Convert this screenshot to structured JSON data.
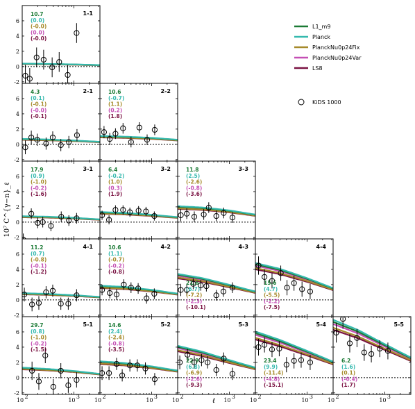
{
  "chart_data": {
    "type": "line",
    "xlabel": "ℓ",
    "ylabel": "10⁷ C^{γ−n}_ℓ",
    "xscale": "log",
    "xlim": [
      100,
      3200
    ],
    "ylim": [
      -2.2,
      8.0
    ],
    "yticks": [
      -2,
      0,
      2,
      4,
      6
    ],
    "xticks": [
      {
        "v": 100,
        "base": "10",
        "exp": "2"
      },
      {
        "v": 1000,
        "base": "10",
        "exp": "3"
      }
    ],
    "grid": false,
    "legend": {
      "placement": "top-right",
      "items": [
        {
          "name": "L1_m9",
          "color": "#1b7a35",
          "kind": "line"
        },
        {
          "name": "Planck",
          "color": "#35b9ae",
          "kind": "line"
        },
        {
          "name": "PlanckNu0p24Fix",
          "color": "#a68a2b",
          "kind": "line"
        },
        {
          "name": "PlanckNu0p24Var",
          "color": "#c44fb4",
          "kind": "line"
        },
        {
          "name": "LS8",
          "color": "#7a1242",
          "kind": "line"
        },
        {
          "name": "KiDS 1000",
          "color": "#000000",
          "kind": "marker"
        }
      ]
    },
    "stat_colors": [
      "#1b7a35",
      "#35b9ae",
      "#a68a2b",
      "#c44fb4",
      "#7a1242"
    ],
    "panels": [
      {
        "label": "1-1",
        "row": 0,
        "col": 0,
        "stats_pos": "top",
        "stats": [
          "10.7",
          "(0.0)",
          "(-0.0)",
          "(0.0)",
          "(-0.0)"
        ],
        "model": [
          [
            100,
            0.35
          ],
          [
            300,
            0.32
          ],
          [
            1000,
            0.26
          ],
          [
            3200,
            0.18
          ]
        ],
        "points": [
          {
            "x": 115,
            "y": -1.2,
            "e": 1.4
          },
          {
            "x": 140,
            "y": -1.6,
            "e": 1.4
          },
          {
            "x": 190,
            "y": 1.2,
            "e": 1.3
          },
          {
            "x": 260,
            "y": 0.9,
            "e": 1.3
          },
          {
            "x": 380,
            "y": -0.1,
            "e": 1.3
          },
          {
            "x": 520,
            "y": 0.6,
            "e": 1.3
          },
          {
            "x": 760,
            "y": -1.1,
            "e": 1.3
          },
          {
            "x": 1130,
            "y": 4.4,
            "e": 1.3
          }
        ]
      },
      {
        "label": "2-1",
        "row": 1,
        "col": 0,
        "stats_pos": "top",
        "stats": [
          "4.3",
          "(0.1)",
          "(-0.1)",
          "(-0.0)",
          "(-0.1)"
        ],
        "model": [
          [
            100,
            0.65
          ],
          [
            300,
            0.58
          ],
          [
            1000,
            0.46
          ],
          [
            3200,
            0.3
          ]
        ],
        "points": [
          {
            "x": 115,
            "y": -0.4,
            "e": 0.9
          },
          {
            "x": 150,
            "y": 0.9,
            "e": 0.9
          },
          {
            "x": 195,
            "y": 0.6,
            "e": 0.8
          },
          {
            "x": 290,
            "y": 0.1,
            "e": 0.8
          },
          {
            "x": 390,
            "y": 0.9,
            "e": 0.8
          },
          {
            "x": 560,
            "y": -0.1,
            "e": 0.8
          },
          {
            "x": 800,
            "y": 0.3,
            "e": 0.8
          },
          {
            "x": 1150,
            "y": 1.2,
            "e": 0.8
          }
        ]
      },
      {
        "label": "2-2",
        "row": 1,
        "col": 1,
        "stats_pos": "top",
        "stats": [
          "10.6",
          "(-0.7)",
          "(1.1)",
          "(0.2)",
          "(1.8)"
        ],
        "model": [
          [
            100,
            1.0
          ],
          [
            300,
            0.92
          ],
          [
            1000,
            0.78
          ],
          [
            3200,
            0.55
          ]
        ],
        "points": [
          {
            "x": 120,
            "y": 1.6,
            "e": 0.8
          },
          {
            "x": 155,
            "y": 0.7,
            "e": 0.8
          },
          {
            "x": 200,
            "y": 1.4,
            "e": 0.7
          },
          {
            "x": 280,
            "y": 2.1,
            "e": 0.7
          },
          {
            "x": 400,
            "y": 0.3,
            "e": 0.7
          },
          {
            "x": 580,
            "y": 2.2,
            "e": 0.7
          },
          {
            "x": 820,
            "y": 0.6,
            "e": 0.7
          },
          {
            "x": 1150,
            "y": 1.9,
            "e": 0.7
          }
        ]
      },
      {
        "label": "3-1",
        "row": 2,
        "col": 0,
        "stats_pos": "top",
        "stats": [
          "17.9",
          "(0.9)",
          "(-1.0)",
          "(-0.2)",
          "(-1.6)"
        ],
        "model": [
          [
            100,
            0.7
          ],
          [
            300,
            0.65
          ],
          [
            1000,
            0.52
          ],
          [
            3200,
            0.32
          ]
        ],
        "points": [
          {
            "x": 105,
            "y": -2.3,
            "e": 0.8
          },
          {
            "x": 150,
            "y": 1.1,
            "e": 0.7
          },
          {
            "x": 200,
            "y": -0.1,
            "e": 0.7
          },
          {
            "x": 250,
            "y": 0.0,
            "e": 0.7
          },
          {
            "x": 360,
            "y": -0.5,
            "e": 0.7
          },
          {
            "x": 570,
            "y": 0.7,
            "e": 0.7
          },
          {
            "x": 800,
            "y": 0.2,
            "e": 0.7
          },
          {
            "x": 1130,
            "y": 0.5,
            "e": 0.7
          }
        ]
      },
      {
        "label": "3-2",
        "row": 2,
        "col": 1,
        "stats_pos": "top",
        "stats": [
          "6.4",
          "(-0.2)",
          "(1.0)",
          "(0.3)",
          "(1.9)"
        ],
        "model": [
          [
            100,
            1.2
          ],
          [
            300,
            1.1
          ],
          [
            1000,
            0.88
          ],
          [
            3200,
            0.6
          ]
        ],
        "points": [
          {
            "x": 110,
            "y": 0.9,
            "e": 0.6
          },
          {
            "x": 150,
            "y": 0.3,
            "e": 0.6
          },
          {
            "x": 200,
            "y": 1.6,
            "e": 0.6
          },
          {
            "x": 280,
            "y": 1.6,
            "e": 0.6
          },
          {
            "x": 380,
            "y": 1.3,
            "e": 0.6
          },
          {
            "x": 560,
            "y": 1.5,
            "e": 0.6
          },
          {
            "x": 780,
            "y": 1.4,
            "e": 0.6
          },
          {
            "x": 1130,
            "y": 0.8,
            "e": 0.6
          }
        ]
      },
      {
        "label": "3-3",
        "row": 2,
        "col": 2,
        "stats_pos": "top",
        "stats": [
          "11.8",
          "(2.5)",
          "(-2.6)",
          "(-0.8)",
          "(-3.6)"
        ],
        "model": [
          [
            100,
            1.9
          ],
          [
            300,
            1.75
          ],
          [
            1000,
            1.4
          ],
          [
            3200,
            0.9
          ]
        ],
        "points": [
          {
            "x": 115,
            "y": 0.9,
            "e": 0.8
          },
          {
            "x": 150,
            "y": 1.1,
            "e": 0.7
          },
          {
            "x": 210,
            "y": 0.7,
            "e": 0.7
          },
          {
            "x": 320,
            "y": 1.0,
            "e": 0.7
          },
          {
            "x": 400,
            "y": 1.9,
            "e": 0.7
          },
          {
            "x": 560,
            "y": 0.8,
            "e": 0.7
          },
          {
            "x": 780,
            "y": 1.2,
            "e": 0.7
          },
          {
            "x": 1150,
            "y": 0.6,
            "e": 0.7
          }
        ]
      },
      {
        "label": "4-1",
        "row": 3,
        "col": 0,
        "stats_pos": "top",
        "stats": [
          "11.2",
          "(0.7)",
          "(-0.8)",
          "(-0.1)",
          "(-1.2)"
        ],
        "model": [
          [
            100,
            0.8
          ],
          [
            300,
            0.72
          ],
          [
            1000,
            0.56
          ],
          [
            3200,
            0.35
          ]
        ],
        "points": [
          {
            "x": 110,
            "y": 0.7,
            "e": 0.9
          },
          {
            "x": 155,
            "y": -0.6,
            "e": 0.9
          },
          {
            "x": 210,
            "y": -0.4,
            "e": 0.9
          },
          {
            "x": 290,
            "y": 1.0,
            "e": 0.8
          },
          {
            "x": 390,
            "y": 1.2,
            "e": 0.8
          },
          {
            "x": 560,
            "y": -0.5,
            "e": 0.8
          },
          {
            "x": 780,
            "y": -0.5,
            "e": 0.8
          },
          {
            "x": 1130,
            "y": 0.6,
            "e": 0.8
          }
        ]
      },
      {
        "label": "4-2",
        "row": 3,
        "col": 1,
        "stats_pos": "top",
        "stats": [
          "10.6",
          "(1.1)",
          "(-0.7)",
          "(-0.2)",
          "(-0.8)"
        ],
        "model": [
          [
            100,
            1.7
          ],
          [
            300,
            1.55
          ],
          [
            1000,
            1.2
          ],
          [
            3200,
            0.75
          ]
        ],
        "points": [
          {
            "x": 110,
            "y": 1.3,
            "e": 0.7
          },
          {
            "x": 155,
            "y": 0.9,
            "e": 0.7
          },
          {
            "x": 210,
            "y": 0.7,
            "e": 0.7
          },
          {
            "x": 290,
            "y": 2.0,
            "e": 0.7
          },
          {
            "x": 400,
            "y": 1.6,
            "e": 0.7
          },
          {
            "x": 550,
            "y": 1.5,
            "e": 0.7
          },
          {
            "x": 800,
            "y": 0.2,
            "e": 0.7
          },
          {
            "x": 1130,
            "y": 0.8,
            "e": 0.7
          }
        ]
      },
      {
        "label": "4-3",
        "row": 3,
        "col": 2,
        "stats_pos": "bottom",
        "stats": [
          "21.6",
          "(6.7)",
          "(-7.2)",
          "(-2.3)",
          "(-10.1)"
        ],
        "model": [
          [
            100,
            3.1
          ],
          [
            300,
            2.6
          ],
          [
            1000,
            1.8
          ],
          [
            3200,
            1.0
          ]
        ],
        "points": [
          {
            "x": 115,
            "y": 1.3,
            "e": 0.8
          },
          {
            "x": 150,
            "y": 1.3,
            "e": 0.8
          },
          {
            "x": 200,
            "y": 2.1,
            "e": 0.7
          },
          {
            "x": 280,
            "y": 1.9,
            "e": 0.7
          },
          {
            "x": 360,
            "y": 1.8,
            "e": 0.7
          },
          {
            "x": 560,
            "y": 0.6,
            "e": 0.7
          },
          {
            "x": 770,
            "y": 1.1,
            "e": 0.7
          },
          {
            "x": 1150,
            "y": 1.6,
            "e": 0.7
          }
        ]
      },
      {
        "label": "4-4",
        "row": 3,
        "col": 3,
        "stats_pos": "bottom",
        "stats": [
          "15.6",
          "(4.7)",
          "(-5.5)",
          "(-2.2)",
          "(-7.5)"
        ],
        "model": [
          [
            100,
            4.4
          ],
          [
            300,
            3.7
          ],
          [
            1000,
            2.6
          ],
          [
            3200,
            1.4
          ]
        ],
        "points": [
          {
            "x": 115,
            "y": 4.5,
            "e": 1.2
          },
          {
            "x": 150,
            "y": 3.0,
            "e": 1.0
          },
          {
            "x": 210,
            "y": 2.5,
            "e": 1.0
          },
          {
            "x": 310,
            "y": 3.5,
            "e": 1.0
          },
          {
            "x": 410,
            "y": 1.6,
            "e": 1.0
          },
          {
            "x": 560,
            "y": 2.2,
            "e": 1.0
          },
          {
            "x": 800,
            "y": 1.4,
            "e": 1.0
          },
          {
            "x": 1150,
            "y": 1.1,
            "e": 1.0
          }
        ]
      },
      {
        "label": "5-1",
        "row": 4,
        "col": 0,
        "stats_pos": "top",
        "stats": [
          "29.7",
          "(0.8)",
          "(-1.0)",
          "(-0.2)",
          "(-1.5)"
        ],
        "model": [
          [
            100,
            1.2
          ],
          [
            300,
            1.05
          ],
          [
            1000,
            0.8
          ],
          [
            3200,
            0.45
          ]
        ],
        "points": [
          {
            "x": 155,
            "y": 0.9,
            "e": 1.2
          },
          {
            "x": 210,
            "y": -0.5,
            "e": 1.1
          },
          {
            "x": 280,
            "y": 2.9,
            "e": 1.0
          },
          {
            "x": 400,
            "y": -1.2,
            "e": 1.0
          },
          {
            "x": 560,
            "y": 0.9,
            "e": 1.0
          },
          {
            "x": 780,
            "y": -1.0,
            "e": 1.0
          },
          {
            "x": 1130,
            "y": -0.3,
            "e": 1.0
          }
        ]
      },
      {
        "label": "5-2",
        "row": 4,
        "col": 1,
        "stats_pos": "top",
        "stats": [
          "14.6",
          "(2.4)",
          "(-2.4)",
          "(-0.8)",
          "(-3.5)"
        ],
        "model": [
          [
            100,
            1.95
          ],
          [
            300,
            1.75
          ],
          [
            1000,
            1.35
          ],
          [
            3200,
            0.85
          ]
        ],
        "points": [
          {
            "x": 110,
            "y": 0.6,
            "e": 0.9
          },
          {
            "x": 150,
            "y": 0.6,
            "e": 0.9
          },
          {
            "x": 210,
            "y": 1.8,
            "e": 0.8
          },
          {
            "x": 270,
            "y": 0.3,
            "e": 0.8
          },
          {
            "x": 380,
            "y": 1.6,
            "e": 0.8
          },
          {
            "x": 530,
            "y": 1.6,
            "e": 0.8
          },
          {
            "x": 760,
            "y": 1.2,
            "e": 0.8
          },
          {
            "x": 1150,
            "y": -0.2,
            "e": 0.8
          }
        ]
      },
      {
        "label": "5-3",
        "row": 4,
        "col": 2,
        "stats_pos": "bottom",
        "stats": [
          "22.9",
          "(6.8)",
          "(-6.9)",
          "(-2.6)",
          "(-9.3)"
        ],
        "model": [
          [
            100,
            3.8
          ],
          [
            300,
            3.1
          ],
          [
            1000,
            2.1
          ],
          [
            3200,
            1.2
          ]
        ],
        "points": [
          {
            "x": 110,
            "y": 2.0,
            "e": 0.9
          },
          {
            "x": 155,
            "y": 3.0,
            "e": 0.8
          },
          {
            "x": 210,
            "y": 2.0,
            "e": 0.8
          },
          {
            "x": 290,
            "y": 2.3,
            "e": 0.8
          },
          {
            "x": 380,
            "y": 2.0,
            "e": 0.8
          },
          {
            "x": 560,
            "y": 1.0,
            "e": 0.8
          },
          {
            "x": 780,
            "y": 2.5,
            "e": 0.8
          },
          {
            "x": 1150,
            "y": 0.5,
            "e": 0.8
          }
        ]
      },
      {
        "label": "5-4",
        "row": 4,
        "col": 3,
        "stats_pos": "bottom",
        "stats": [
          "23.4",
          "(9.9)",
          "(-11.4)",
          "(-4.8)",
          "(-15.1)"
        ],
        "model": [
          [
            100,
            5.5
          ],
          [
            300,
            4.5
          ],
          [
            1000,
            3.2
          ],
          [
            3200,
            1.9
          ]
        ],
        "points": [
          {
            "x": 115,
            "y": 4.0,
            "e": 1.1
          },
          {
            "x": 150,
            "y": 4.3,
            "e": 1.0
          },
          {
            "x": 210,
            "y": 3.7,
            "e": 1.0
          },
          {
            "x": 290,
            "y": 3.8,
            "e": 1.0
          },
          {
            "x": 400,
            "y": 1.7,
            "e": 1.0
          },
          {
            "x": 560,
            "y": 2.2,
            "e": 1.0
          },
          {
            "x": 770,
            "y": 2.3,
            "e": 1.0
          },
          {
            "x": 1150,
            "y": 2.0,
            "e": 1.0
          }
        ]
      },
      {
        "label": "5-5",
        "row": 4,
        "col": 4,
        "stats_pos": "bottom",
        "stats": [
          "6.2",
          "(1.6)",
          "(0.1)",
          "(-0.4)",
          "(1.7)"
        ],
        "model": [
          [
            100,
            6.9
          ],
          [
            300,
            5.7
          ],
          [
            1000,
            4.0
          ],
          [
            3200,
            2.4
          ]
        ],
        "points": [
          {
            "x": 115,
            "y": 5.9,
            "e": 1.3
          },
          {
            "x": 155,
            "y": 7.7,
            "e": 1.3
          },
          {
            "x": 210,
            "y": 4.5,
            "e": 1.2
          },
          {
            "x": 290,
            "y": 5.2,
            "e": 1.2
          },
          {
            "x": 400,
            "y": 3.3,
            "e": 1.1
          },
          {
            "x": 550,
            "y": 3.1,
            "e": 1.1
          },
          {
            "x": 800,
            "y": 3.8,
            "e": 1.1
          },
          {
            "x": 1150,
            "y": 3.5,
            "e": 1.1
          }
        ]
      }
    ]
  }
}
